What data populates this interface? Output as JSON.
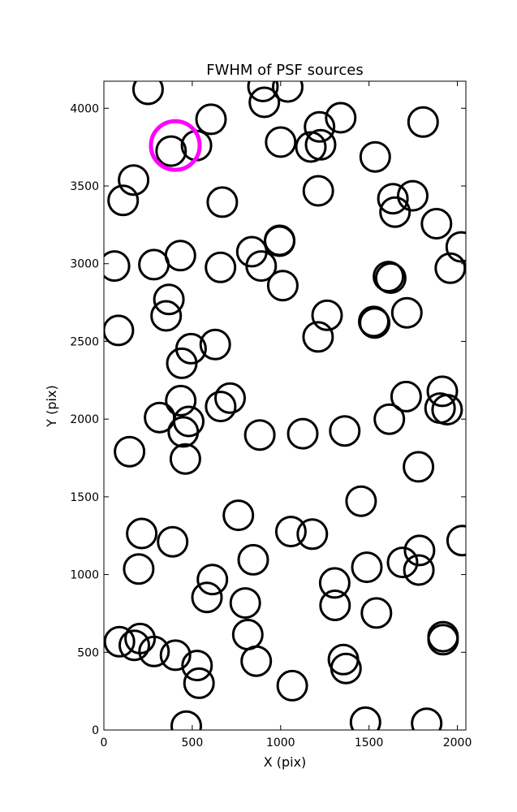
{
  "chart_data": {
    "type": "scatter",
    "title": "FWHM of PSF sources",
    "xlabel": "X (pix)",
    "ylabel": "Y (pix)",
    "xlim": [
      0,
      2048
    ],
    "ylim": [
      0,
      4174
    ],
    "xticks": [
      0,
      500,
      1000,
      1500,
      2000
    ],
    "yticks": [
      0,
      500,
      1000,
      1500,
      2000,
      2500,
      3000,
      3500,
      4000
    ],
    "grid": false,
    "marker": "open-circle",
    "colors": {
      "default": "#000000",
      "highlight": "#ff00ff"
    },
    "series": [
      {
        "points": [
          [
            250,
            4122
          ],
          [
            900,
            4140
          ],
          [
            1040,
            4137
          ],
          [
            908,
            4038
          ],
          [
            606,
            3929
          ],
          [
            1340,
            3939
          ],
          [
            1806,
            3911
          ],
          [
            1000,
            3782
          ],
          [
            1171,
            3751
          ],
          [
            1226,
            3765
          ],
          [
            1220,
            3880
          ],
          [
            524,
            3760
          ],
          [
            380,
            3724
          ],
          [
            1535,
            3687
          ],
          [
            168,
            3538
          ],
          [
            109,
            3407
          ],
          [
            670,
            3396
          ],
          [
            1213,
            3469
          ],
          [
            1635,
            3418
          ],
          [
            1647,
            3332
          ],
          [
            1747,
            3437
          ],
          [
            1882,
            3257
          ],
          [
            2022,
            3108
          ],
          [
            60,
            2985
          ],
          [
            283,
            2994
          ],
          [
            433,
            3052
          ],
          [
            660,
            2976
          ],
          [
            837,
            3077
          ],
          [
            890,
            2985
          ],
          [
            994,
            3150
          ],
          [
            994,
            3145
          ],
          [
            1012,
            2859
          ],
          [
            1610,
            2917
          ],
          [
            1623,
            2907
          ],
          [
            1960,
            2971
          ],
          [
            368,
            2770
          ],
          [
            352,
            2664
          ],
          [
            1263,
            2668
          ],
          [
            1212,
            2529
          ],
          [
            1527,
            2628
          ],
          [
            1532,
            2619
          ],
          [
            1714,
            2684
          ],
          [
            82,
            2571
          ],
          [
            630,
            2480
          ],
          [
            493,
            2453
          ],
          [
            441,
            2359
          ],
          [
            435,
            2119
          ],
          [
            315,
            2010
          ],
          [
            480,
            1985
          ],
          [
            449,
            1918
          ],
          [
            661,
            2081
          ],
          [
            714,
            2135
          ],
          [
            882,
            1898
          ],
          [
            1125,
            1906
          ],
          [
            1363,
            1924
          ],
          [
            1615,
            2000
          ],
          [
            1710,
            2145
          ],
          [
            1915,
            2179
          ],
          [
            1902,
            2071
          ],
          [
            1942,
            2061
          ],
          [
            145,
            1791
          ],
          [
            461,
            1744
          ],
          [
            1780,
            1693
          ],
          [
            1455,
            1472
          ],
          [
            761,
            1381
          ],
          [
            214,
            1264
          ],
          [
            389,
            1211
          ],
          [
            1058,
            1277
          ],
          [
            1179,
            1260
          ],
          [
            2027,
            1219
          ],
          [
            1690,
            1078
          ],
          [
            1786,
            1155
          ],
          [
            1782,
            1029
          ],
          [
            197,
            1036
          ],
          [
            845,
            1095
          ],
          [
            1488,
            1047
          ],
          [
            614,
            968
          ],
          [
            583,
            853
          ],
          [
            1306,
            946
          ],
          [
            1308,
            802
          ],
          [
            800,
            817
          ],
          [
            814,
            614
          ],
          [
            1542,
            753
          ],
          [
            88,
            568
          ],
          [
            172,
            545
          ],
          [
            205,
            588
          ],
          [
            284,
            505
          ],
          [
            405,
            481
          ],
          [
            527,
            415
          ],
          [
            538,
            301
          ],
          [
            862,
            443
          ],
          [
            1066,
            285
          ],
          [
            1355,
            453
          ],
          [
            1370,
            396
          ],
          [
            1919,
            600
          ],
          [
            1919,
            581
          ],
          [
            466,
            25
          ],
          [
            1480,
            50
          ],
          [
            1826,
            43
          ]
        ]
      },
      {
        "name": "",
        "highlight": true,
        "points": [
          [
            404,
            3760
          ]
        ]
      }
    ]
  }
}
